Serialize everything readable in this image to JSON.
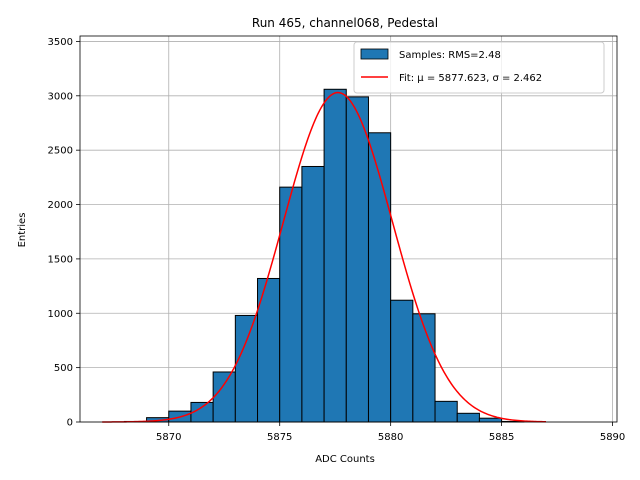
{
  "chart_data": {
    "type": "bar",
    "title": "Run 465, channel068, Pedestal",
    "xlabel": "ADC Counts",
    "ylabel": "Entries",
    "xlim": [
      5866,
      5890.2
    ],
    "ylim": [
      0,
      3550
    ],
    "xticks": [
      5870,
      5875,
      5880,
      5885,
      5890
    ],
    "yticks": [
      0,
      500,
      1000,
      1500,
      2000,
      2500,
      3000,
      3500
    ],
    "grid": true,
    "legend_position": "top-right",
    "histogram": {
      "name": "Samples: RMS=2.48",
      "color": "#1f77b4",
      "edgecolor": "#000000",
      "bins": [
        {
          "x0": 5867,
          "x1": 5868,
          "count": 0
        },
        {
          "x0": 5868,
          "x1": 5869,
          "count": 5
        },
        {
          "x0": 5869,
          "x1": 5870,
          "count": 40
        },
        {
          "x0": 5870,
          "x1": 5871,
          "count": 100
        },
        {
          "x0": 5871,
          "x1": 5872,
          "count": 180
        },
        {
          "x0": 5872,
          "x1": 5873,
          "count": 460
        },
        {
          "x0": 5873,
          "x1": 5874,
          "count": 980
        },
        {
          "x0": 5874,
          "x1": 5875,
          "count": 1320
        },
        {
          "x0": 5875,
          "x1": 5876,
          "count": 2160
        },
        {
          "x0": 5876,
          "x1": 5877,
          "count": 2350
        },
        {
          "x0": 5877,
          "x1": 5878,
          "count": 3060
        },
        {
          "x0": 5878,
          "x1": 5879,
          "count": 2990
        },
        {
          "x0": 5879,
          "x1": 5880,
          "count": 2660
        },
        {
          "x0": 5880,
          "x1": 5881,
          "count": 1120
        },
        {
          "x0": 5881,
          "x1": 5882,
          "count": 995
        },
        {
          "x0": 5882,
          "x1": 5883,
          "count": 190
        },
        {
          "x0": 5883,
          "x1": 5884,
          "count": 80
        },
        {
          "x0": 5884,
          "x1": 5885,
          "count": 35
        },
        {
          "x0": 5885,
          "x1": 5886,
          "count": 5
        },
        {
          "x0": 5886,
          "x1": 5887,
          "count": 0
        }
      ]
    },
    "fit": {
      "name": "Fit: μ = 5877.623, σ = 2.462",
      "color": "#ff0000",
      "mu": 5877.623,
      "sigma": 2.462,
      "amplitude": 3030,
      "x_range": [
        5867,
        5887
      ]
    }
  }
}
